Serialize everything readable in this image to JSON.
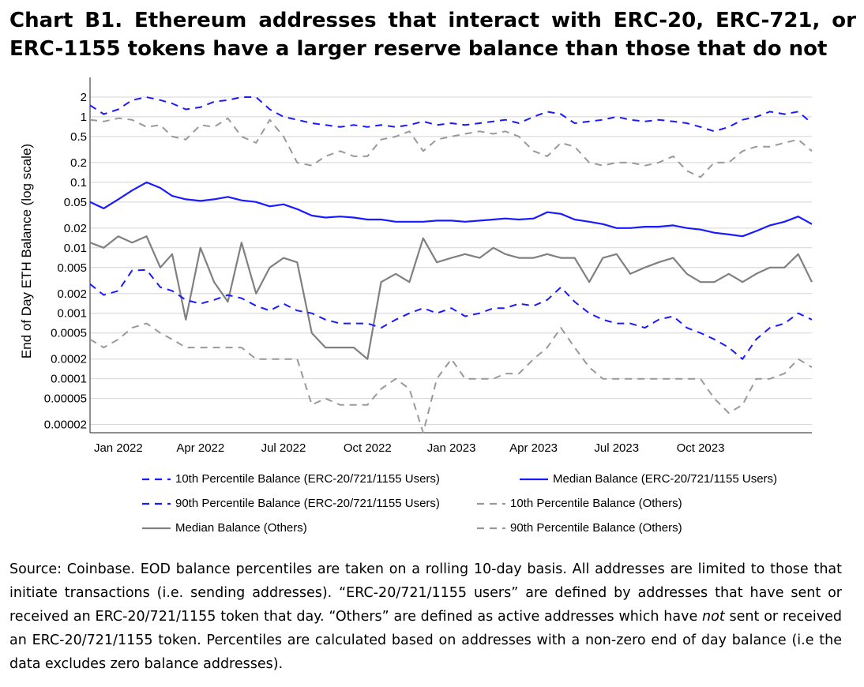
{
  "title": "Chart B1. Ethereum addresses that interact with ERC-20, ERC-721, or ERC-1155 tokens have a larger reserve balance than those that do not",
  "chart_data": {
    "type": "line",
    "ylabel": "End of Day ETH Balance (log scale)",
    "yscale": "log",
    "ylim": [
      1.5e-05,
      4
    ],
    "xlim": [
      "2021-12-01",
      "2024-01-31"
    ],
    "y_ticks": [
      {
        "value": 2,
        "label": "2"
      },
      {
        "value": 1,
        "label": "1"
      },
      {
        "value": 0.5,
        "label": "0.5"
      },
      {
        "value": 0.2,
        "label": "0.2"
      },
      {
        "value": 0.1,
        "label": "0.1"
      },
      {
        "value": 0.05,
        "label": "0.05"
      },
      {
        "value": 0.02,
        "label": "0.02"
      },
      {
        "value": 0.01,
        "label": "0.01"
      },
      {
        "value": 0.005,
        "label": "0.005"
      },
      {
        "value": 0.002,
        "label": "0.002"
      },
      {
        "value": 0.001,
        "label": "0.001"
      },
      {
        "value": 0.0005,
        "label": "0.0005"
      },
      {
        "value": 0.0002,
        "label": "0.0002"
      },
      {
        "value": 0.0001,
        "label": "0.0001"
      },
      {
        "value": 5e-05,
        "label": "0.00005"
      },
      {
        "value": 2e-05,
        "label": "0.00002"
      }
    ],
    "x_ticks": [
      {
        "value": "2022-01-01",
        "label": "Jan 2022"
      },
      {
        "value": "2022-04-01",
        "label": "Apr 2022"
      },
      {
        "value": "2022-07-01",
        "label": "Jul 2022"
      },
      {
        "value": "2022-10-01",
        "label": "Oct 2022"
      },
      {
        "value": "2023-01-01",
        "label": "Jan 2023"
      },
      {
        "value": "2023-04-01",
        "label": "Apr 2023"
      },
      {
        "value": "2023-07-01",
        "label": "Jul 2023"
      },
      {
        "value": "2023-10-01",
        "label": "Oct 2023"
      }
    ],
    "grid": true,
    "legend_position": "bottom",
    "x": [
      "2021-12-01",
      "2021-12-16",
      "2022-01-01",
      "2022-01-16",
      "2022-02-01",
      "2022-02-16",
      "2022-03-01",
      "2022-03-16",
      "2022-04-01",
      "2022-04-16",
      "2022-05-01",
      "2022-05-16",
      "2022-06-01",
      "2022-06-16",
      "2022-07-01",
      "2022-07-16",
      "2022-08-01",
      "2022-08-16",
      "2022-09-01",
      "2022-09-16",
      "2022-10-01",
      "2022-10-16",
      "2022-11-01",
      "2022-11-16",
      "2022-12-01",
      "2022-12-16",
      "2023-01-01",
      "2023-01-16",
      "2023-02-01",
      "2023-02-16",
      "2023-03-01",
      "2023-03-16",
      "2023-04-01",
      "2023-04-16",
      "2023-05-01",
      "2023-05-16",
      "2023-06-01",
      "2023-06-16",
      "2023-07-01",
      "2023-07-16",
      "2023-08-01",
      "2023-08-16",
      "2023-09-01",
      "2023-09-16",
      "2023-10-01",
      "2023-10-16",
      "2023-11-01",
      "2023-11-16",
      "2023-12-01",
      "2023-12-16",
      "2024-01-01",
      "2024-01-16",
      "2024-01-31"
    ],
    "series": [
      {
        "name": "10th Percentile Balance (ERC-20/721/1155 Users)",
        "color": "#1a1aff",
        "dash": "dash",
        "values": [
          0.0028,
          0.0019,
          0.0022,
          0.0045,
          0.0046,
          0.0025,
          0.0022,
          0.0016,
          0.0014,
          0.0016,
          0.0019,
          0.0017,
          0.0013,
          0.0011,
          0.0014,
          0.0011,
          0.001,
          0.0008,
          0.0007,
          0.0007,
          0.0007,
          0.0006,
          0.0008,
          0.001,
          0.0012,
          0.001,
          0.0012,
          0.0009,
          0.001,
          0.0012,
          0.0012,
          0.0014,
          0.0013,
          0.0016,
          0.0025,
          0.0015,
          0.001,
          0.0008,
          0.0007,
          0.0007,
          0.0006,
          0.0008,
          0.0009,
          0.0006,
          0.0005,
          0.0004,
          0.0003,
          0.0002,
          0.0004,
          0.0006,
          0.0007,
          0.001,
          0.0008
        ]
      },
      {
        "name": "Median Balance (ERC-20/721/1155 Users)",
        "color": "#1a1aff",
        "dash": "solid",
        "values": [
          0.05,
          0.04,
          0.055,
          0.075,
          0.1,
          0.082,
          0.062,
          0.055,
          0.052,
          0.055,
          0.06,
          0.053,
          0.05,
          0.043,
          0.046,
          0.039,
          0.031,
          0.029,
          0.03,
          0.029,
          0.027,
          0.027,
          0.025,
          0.025,
          0.025,
          0.026,
          0.026,
          0.025,
          0.026,
          0.027,
          0.028,
          0.027,
          0.028,
          0.035,
          0.033,
          0.027,
          0.025,
          0.023,
          0.02,
          0.02,
          0.021,
          0.021,
          0.022,
          0.02,
          0.019,
          0.017,
          0.016,
          0.015,
          0.018,
          0.022,
          0.025,
          0.03,
          0.023
        ]
      },
      {
        "name": "90th Percentile Balance (ERC-20/721/1155 Users)",
        "color": "#1a1aff",
        "dash": "dash",
        "values": [
          1.5,
          1.1,
          1.3,
          1.8,
          2.0,
          1.8,
          1.6,
          1.3,
          1.4,
          1.7,
          1.8,
          2.0,
          2.0,
          1.3,
          1.0,
          0.9,
          0.8,
          0.75,
          0.7,
          0.75,
          0.7,
          0.75,
          0.7,
          0.75,
          0.85,
          0.75,
          0.8,
          0.75,
          0.8,
          0.85,
          0.9,
          0.8,
          1.0,
          1.2,
          1.1,
          0.8,
          0.85,
          0.9,
          1.0,
          0.9,
          0.85,
          0.9,
          0.85,
          0.8,
          0.7,
          0.6,
          0.7,
          0.9,
          1.0,
          1.2,
          1.1,
          1.2,
          0.8
        ]
      },
      {
        "name": "10th Percentile Balance (Others)",
        "color": "#999999",
        "dash": "dash",
        "values": [
          0.0004,
          0.0003,
          0.0004,
          0.0006,
          0.0007,
          0.0005,
          0.0004,
          0.0003,
          0.0003,
          0.0003,
          0.0003,
          0.0003,
          0.0002,
          0.0002,
          0.0002,
          0.0002,
          4e-05,
          5e-05,
          4e-05,
          4e-05,
          4e-05,
          7e-05,
          0.0001,
          7e-05,
          1.5e-05,
          0.0001,
          0.0002,
          0.0001,
          0.0001,
          0.0001,
          0.00012,
          0.00012,
          0.0002,
          0.0003,
          0.0006,
          0.0003,
          0.00015,
          0.0001,
          0.0001,
          0.0001,
          0.0001,
          0.0001,
          0.0001,
          0.0001,
          0.0001,
          5e-05,
          3e-05,
          4e-05,
          0.0001,
          0.0001,
          0.00012,
          0.0002,
          0.00015
        ]
      },
      {
        "name": "Median Balance (Others)",
        "color": "#808080",
        "dash": "solid",
        "values": [
          0.012,
          0.01,
          0.015,
          0.012,
          0.015,
          0.005,
          0.008,
          0.0008,
          0.01,
          0.003,
          0.0015,
          0.012,
          0.002,
          0.005,
          0.007,
          0.006,
          0.0005,
          0.0003,
          0.0003,
          0.0003,
          0.0002,
          0.003,
          0.004,
          0.003,
          0.014,
          0.006,
          0.007,
          0.008,
          0.007,
          0.01,
          0.008,
          0.007,
          0.007,
          0.008,
          0.007,
          0.007,
          0.003,
          0.007,
          0.008,
          0.004,
          0.005,
          0.006,
          0.007,
          0.004,
          0.003,
          0.003,
          0.004,
          0.003,
          0.004,
          0.005,
          0.005,
          0.008,
          0.003
        ]
      },
      {
        "name": "90th Percentile Balance (Others)",
        "color": "#999999",
        "dash": "dash",
        "values": [
          0.9,
          0.85,
          0.95,
          0.9,
          0.7,
          0.75,
          0.5,
          0.45,
          0.75,
          0.7,
          0.95,
          0.5,
          0.4,
          0.9,
          0.5,
          0.2,
          0.18,
          0.25,
          0.3,
          0.25,
          0.25,
          0.45,
          0.5,
          0.6,
          0.3,
          0.45,
          0.5,
          0.55,
          0.6,
          0.55,
          0.6,
          0.5,
          0.3,
          0.25,
          0.4,
          0.35,
          0.2,
          0.18,
          0.2,
          0.2,
          0.18,
          0.2,
          0.25,
          0.15,
          0.12,
          0.2,
          0.2,
          0.3,
          0.35,
          0.35,
          0.4,
          0.45,
          0.3
        ]
      }
    ]
  },
  "legend": {
    "items": [
      {
        "label": "10th Percentile Balance (ERC-20/721/1155 Users)",
        "color": "#1a1aff",
        "dash": "dash"
      },
      {
        "label": "Median Balance (ERC-20/721/1155 Users)",
        "color": "#1a1aff",
        "dash": "solid"
      },
      {
        "label": "90th Percentile Balance (ERC-20/721/1155 Users)",
        "color": "#1a1aff",
        "dash": "dash"
      },
      {
        "label": "10th Percentile Balance (Others)",
        "color": "#999999",
        "dash": "dash"
      },
      {
        "label": "Median Balance (Others)",
        "color": "#808080",
        "dash": "solid"
      },
      {
        "label": "90th Percentile Balance (Others)",
        "color": "#999999",
        "dash": "dash"
      }
    ]
  },
  "source": {
    "part1": "Source: Coinbase. EOD balance percentiles are taken on a rolling 10-day basis. All addresses are limited to those that initiate transactions (i.e. sending addresses). “ERC-20/721/1155 users” are defined by addresses that have sent or received an ERC-20/721/1155 token that day. “Others” are defined as active addresses which have ",
    "emphasis": "not",
    "part2": " sent or received an ERC-20/721/1155 token. Percentiles are calculated based on addresses with a non-zero end of day balance (i.e the data excludes zero balance addresses)."
  }
}
